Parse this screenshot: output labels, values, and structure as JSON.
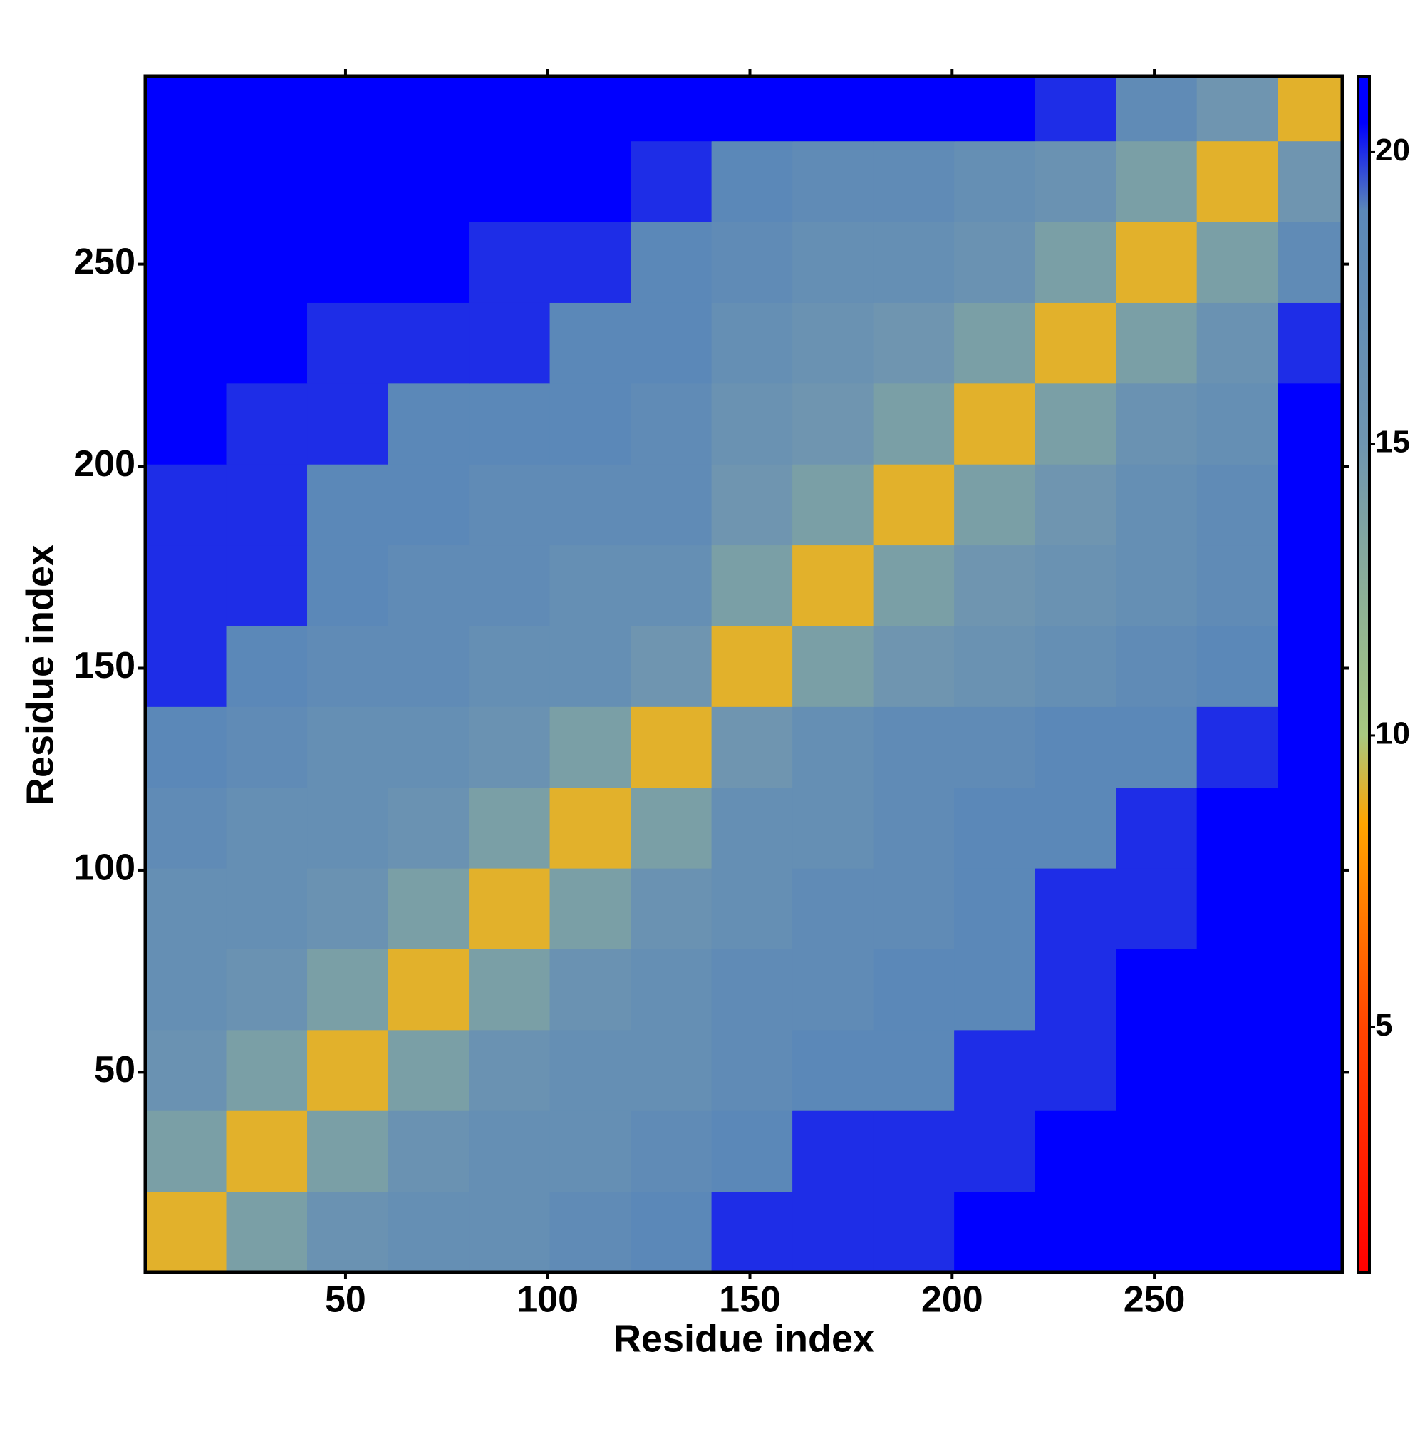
{
  "chart_data": {
    "type": "heatmap",
    "xlabel": "Residue index",
    "ylabel": "Residue index",
    "xbins": [
      0.5,
      20.5,
      40.5,
      60.5,
      80.5,
      100.5,
      120.5,
      140.5,
      160.5,
      180.5,
      200.5,
      220.5,
      240.5,
      260.5,
      280.5,
      296.5
    ],
    "ybins": [
      0.5,
      20.5,
      40.5,
      60.5,
      80.5,
      100.5,
      120.5,
      140.5,
      160.5,
      180.5,
      200.5,
      220.5,
      240.5,
      260.5,
      280.5,
      296.5
    ],
    "z": [
      [
        9,
        14,
        16,
        17,
        17,
        18,
        19,
        20,
        20,
        20,
        21,
        21,
        21,
        21,
        21
      ],
      [
        14,
        9,
        14,
        16,
        17,
        17,
        18,
        19,
        20,
        20,
        20,
        21,
        21,
        21,
        21
      ],
      [
        16,
        14,
        9,
        14,
        16,
        17,
        17,
        18,
        19,
        19,
        20,
        20,
        21,
        21,
        21
      ],
      [
        17,
        16,
        14,
        9,
        14,
        16,
        17,
        18,
        18,
        19,
        19,
        20,
        21,
        21,
        21
      ],
      [
        17,
        17,
        16,
        14,
        9,
        14,
        16,
        17,
        18,
        18,
        19,
        20,
        20,
        21,
        21
      ],
      [
        18,
        17,
        17,
        16,
        14,
        9,
        14,
        17,
        17,
        18,
        19,
        19,
        20,
        21,
        21
      ],
      [
        19,
        18,
        17,
        17,
        16,
        14,
        9,
        15,
        17,
        18,
        18,
        19,
        19,
        20,
        21
      ],
      [
        20,
        19,
        18,
        18,
        17,
        17,
        15,
        9,
        14,
        15,
        16,
        17,
        18,
        19,
        21
      ],
      [
        20,
        20,
        19,
        18,
        18,
        17,
        17,
        14,
        9,
        14,
        15,
        16,
        17,
        18,
        21
      ],
      [
        20,
        20,
        19,
        19,
        18,
        18,
        18,
        15,
        14,
        9,
        14,
        15,
        17,
        18,
        21
      ],
      [
        21,
        20,
        20,
        19,
        19,
        19,
        18,
        16,
        15,
        14,
        9,
        14,
        16,
        17,
        21
      ],
      [
        21,
        21,
        20,
        20,
        20,
        19,
        19,
        17,
        16,
        15,
        14,
        9,
        14,
        16,
        20
      ],
      [
        21,
        21,
        21,
        21,
        20,
        20,
        19,
        18,
        17,
        17,
        16,
        14,
        9,
        14,
        18
      ],
      [
        21,
        21,
        21,
        21,
        21,
        21,
        20,
        19,
        18,
        18,
        17,
        16,
        14,
        9,
        15
      ],
      [
        21,
        21,
        21,
        21,
        21,
        21,
        21,
        21,
        21,
        21,
        21,
        20,
        18,
        15,
        9
      ]
    ],
    "xlim": [
      0.5,
      296.5
    ],
    "ylim": [
      0.5,
      296.5
    ],
    "xticks": [
      50,
      100,
      150,
      200,
      250
    ],
    "yticks": [
      50,
      100,
      150,
      200,
      250
    ],
    "clim": [
      0.8,
      21.3
    ],
    "cticks": [
      5,
      10,
      15,
      20
    ],
    "colorscale": [
      [
        0.8,
        "#ff0000"
      ],
      [
        5,
        "#ff4500"
      ],
      [
        8.5,
        "#ffa500"
      ],
      [
        10,
        "#a8c880"
      ],
      [
        15,
        "#6f95b0"
      ],
      [
        19,
        "#5b88b8"
      ],
      [
        20.5,
        "#0000ff"
      ],
      [
        21.3,
        "#0000ff"
      ]
    ]
  }
}
